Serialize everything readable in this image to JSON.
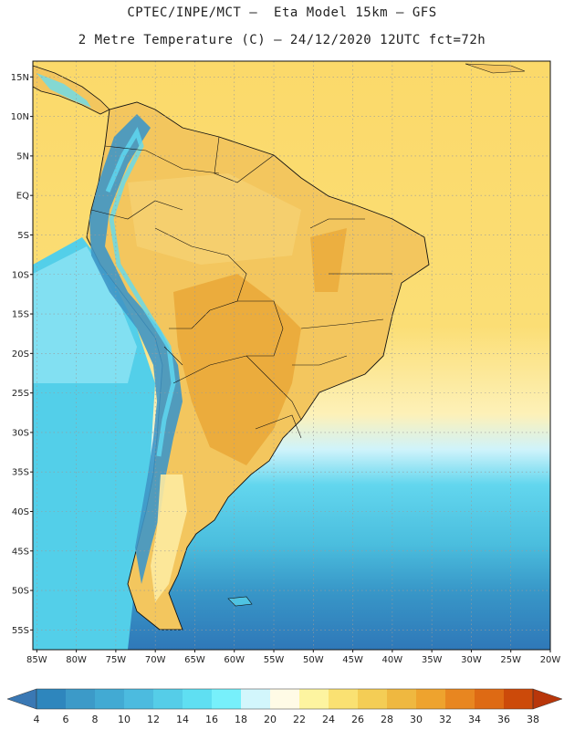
{
  "header": {
    "line1": "CPTEC/INPE/MCT –  Eta Model 15km – GFS",
    "line2": "2 Metre Temperature (C) – 24/12/2020 12UTC fct=72h"
  },
  "axes": {
    "lat_ticks": [
      "15N",
      "10N",
      "5N",
      "EQ",
      "5S",
      "10S",
      "15S",
      "20S",
      "25S",
      "30S",
      "35S",
      "40S",
      "45S",
      "50S",
      "55S"
    ],
    "lat_values": [
      15,
      10,
      5,
      0,
      -5,
      -10,
      -15,
      -20,
      -25,
      -30,
      -35,
      -40,
      -45,
      -50,
      -55
    ],
    "lon_ticks": [
      "85W",
      "80W",
      "75W",
      "70W",
      "65W",
      "60W",
      "55W",
      "50W",
      "45W",
      "40W",
      "35W",
      "30W",
      "25W",
      "20W"
    ],
    "lon_values": [
      -85,
      -80,
      -75,
      -70,
      -65,
      -60,
      -55,
      -50,
      -45,
      -40,
      -35,
      -30,
      -25,
      -20
    ],
    "lon_range": [
      -85.5,
      -20
    ],
    "lat_range": [
      -57.5,
      17
    ]
  },
  "colorbar": {
    "labels": [
      "4",
      "6",
      "8",
      "10",
      "12",
      "14",
      "16",
      "18",
      "20",
      "22",
      "24",
      "26",
      "28",
      "30",
      "32",
      "34",
      "36",
      "38"
    ],
    "colors": [
      "#3a78b4",
      "#2e86bd",
      "#3c9ac8",
      "#42aad3",
      "#4cbbdf",
      "#55cde8",
      "#5fdff2",
      "#77f0fb",
      "#d2f6fc",
      "#fffbe6",
      "#fdf4a0",
      "#fae172",
      "#f4cd55",
      "#efb840",
      "#eea32e",
      "#e88620",
      "#de6a14",
      "#cc4a0a",
      "#b8360a"
    ]
  },
  "map_legend": {
    "land_warm": "#f2c45a",
    "land_hot": "#e9a93a",
    "ocean_warm": "#fbdc6e",
    "ocean_mid": "#5fd4ec",
    "ocean_cold": "#2f7bbd",
    "andes": "#3a8fc2"
  }
}
